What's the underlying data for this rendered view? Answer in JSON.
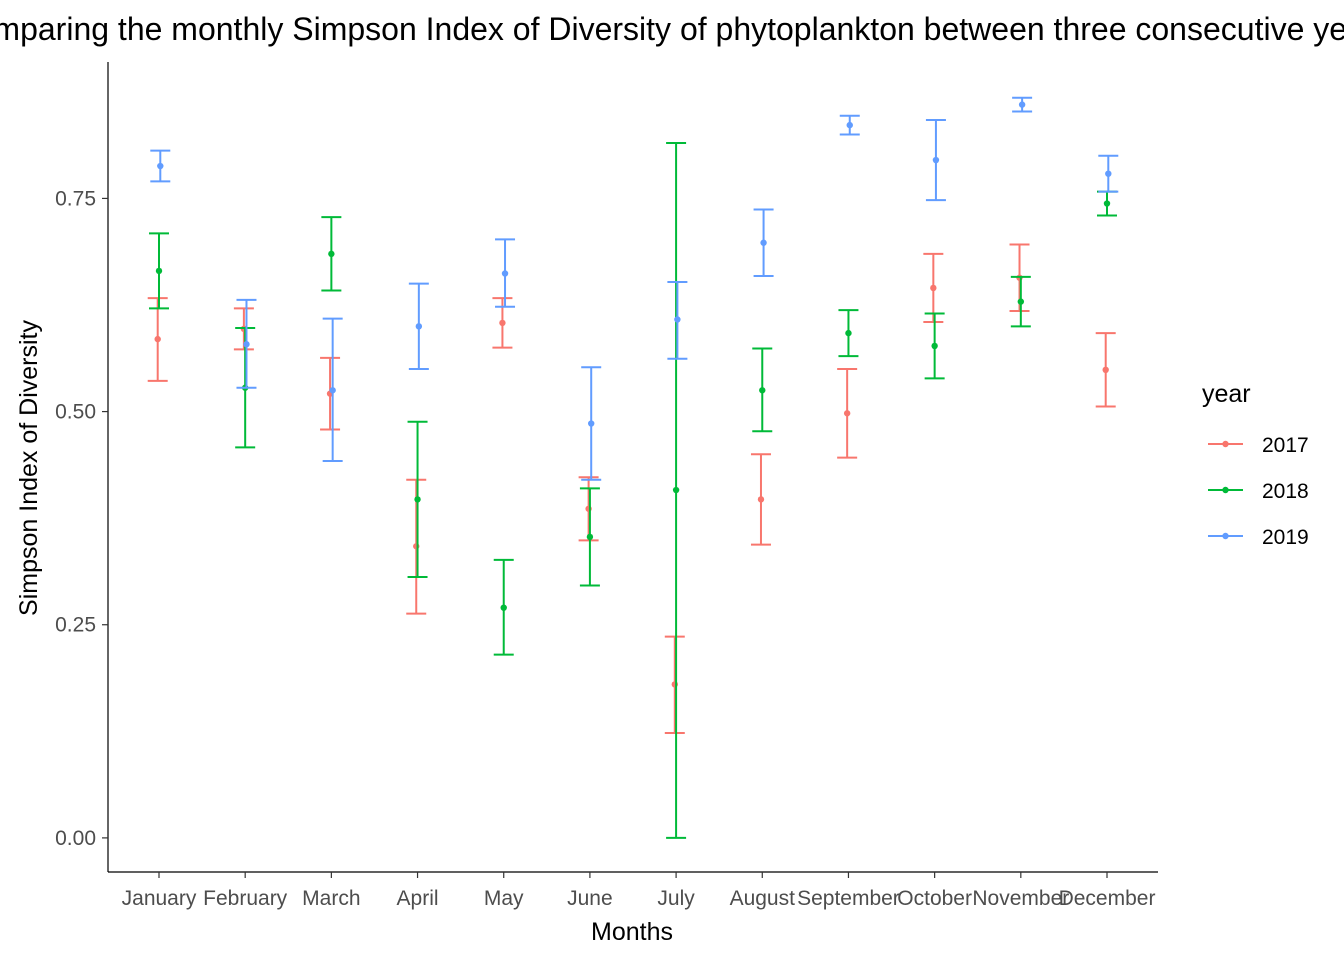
{
  "chart_data": {
    "type": "scatter",
    "title": "Comparing the monthly Simpson Index of Diversity of phytoplankton between three consecutive years",
    "xlabel": "Months",
    "ylabel": "Simpson Index of Diversity",
    "categories": [
      "January",
      "February",
      "March",
      "April",
      "May",
      "June",
      "July",
      "August",
      "September",
      "October",
      "November",
      "December"
    ],
    "y_ticks": [
      "0.00",
      "0.25",
      "0.50",
      "0.75"
    ],
    "y_tick_values": [
      0,
      0.25,
      0.5,
      0.75
    ],
    "ylim": [
      -0.04,
      0.91
    ],
    "grid": false,
    "legend": {
      "title": "year",
      "placement": "right"
    },
    "series": [
      {
        "name": "2017",
        "color": "#F8766D",
        "values": [
          0.585,
          0.597,
          0.521,
          0.342,
          0.604,
          0.386,
          0.18,
          0.397,
          0.498,
          0.645,
          0.657,
          0.549
        ],
        "lower": [
          0.536,
          0.573,
          0.479,
          0.263,
          0.575,
          0.349,
          0.123,
          0.344,
          0.446,
          0.605,
          0.618,
          0.506
        ],
        "upper": [
          0.633,
          0.621,
          0.563,
          0.42,
          0.633,
          0.423,
          0.236,
          0.45,
          0.55,
          0.685,
          0.696,
          0.592
        ]
      },
      {
        "name": "2018",
        "color": "#00BA38",
        "values": [
          0.665,
          0.528,
          0.685,
          0.397,
          0.27,
          0.353,
          0.408,
          0.525,
          0.592,
          0.577,
          0.629,
          0.744
        ],
        "lower": [
          0.621,
          0.458,
          0.642,
          0.306,
          0.215,
          0.296,
          0.0,
          0.477,
          0.565,
          0.539,
          0.6,
          0.73
        ],
        "upper": [
          0.709,
          0.598,
          0.728,
          0.488,
          0.326,
          0.41,
          0.815,
          0.574,
          0.619,
          0.615,
          0.658,
          0.758
        ]
      },
      {
        "name": "2019",
        "color": "#619CFF",
        "values": [
          0.788,
          0.579,
          0.525,
          0.6,
          0.662,
          0.486,
          0.608,
          0.698,
          0.836,
          0.795,
          0.86,
          0.779
        ],
        "lower": [
          0.77,
          0.528,
          0.442,
          0.55,
          0.623,
          0.42,
          0.562,
          0.659,
          0.825,
          0.748,
          0.852,
          0.758
        ],
        "upper": [
          0.806,
          0.631,
          0.609,
          0.65,
          0.702,
          0.552,
          0.652,
          0.737,
          0.847,
          0.842,
          0.868,
          0.8
        ]
      }
    ]
  }
}
